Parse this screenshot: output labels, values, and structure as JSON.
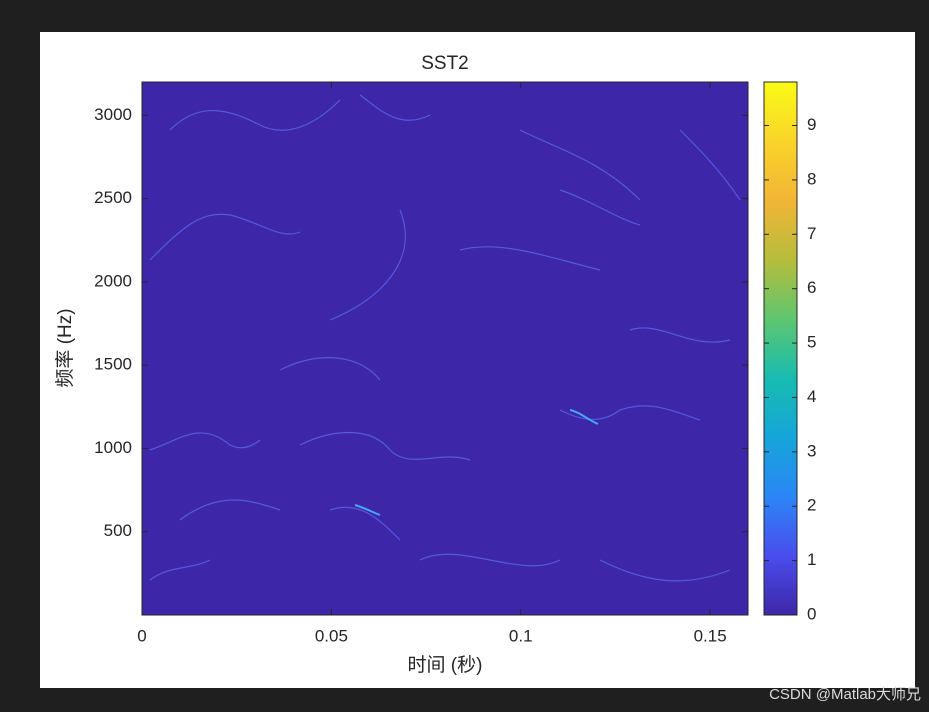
{
  "chart_data": {
    "type": "heatmap",
    "title": "SST2",
    "xlabel": "时间 (秒)",
    "ylabel": "频率 (Hz)",
    "xlim": [
      0,
      0.16
    ],
    "xticks": [
      0,
      0.05,
      0.1,
      0.15
    ],
    "ylim": [
      0,
      3200
    ],
    "yticks": [
      500,
      1000,
      1500,
      2000,
      2500,
      3000
    ],
    "clim": [
      0,
      9.8
    ],
    "cticks": [
      0,
      1,
      2,
      3,
      4,
      5,
      6,
      7,
      8,
      9
    ],
    "colormap": [
      "#3e26a8",
      "#4a4ded",
      "#2b86f6",
      "#16a5d9",
      "#18bcb0",
      "#5fc66f",
      "#b6bd3b",
      "#f2b536",
      "#f9d42a",
      "#f9fb15"
    ]
  },
  "watermark": "CSDN @Matlab大师兄"
}
